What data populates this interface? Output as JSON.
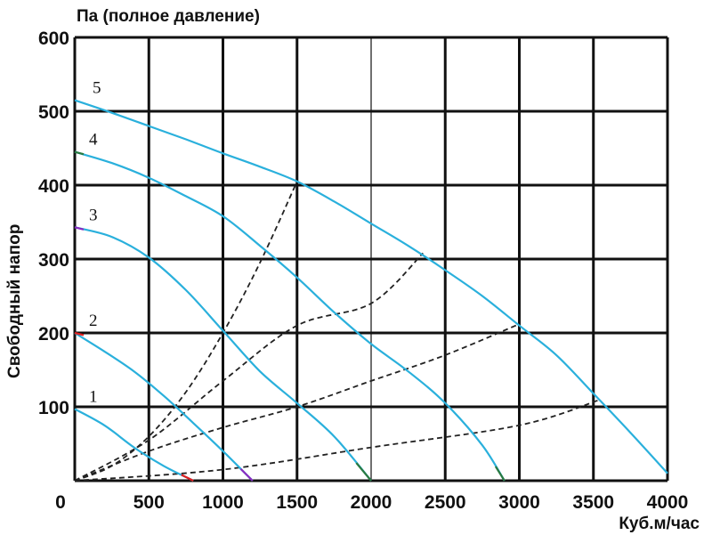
{
  "chart_data": {
    "type": "line",
    "title": "Па (полное давление)",
    "ylabel": "Свободный напор",
    "xlabel": "Куб.м/час",
    "xlim": [
      0,
      4000
    ],
    "ylim": [
      0,
      600
    ],
    "x_ticks": [
      0,
      500,
      1000,
      1500,
      2000,
      2500,
      3000,
      3500,
      4000
    ],
    "y_ticks": [
      100,
      200,
      300,
      400,
      500,
      600
    ],
    "grid": true,
    "colors": {
      "curve": "#2ab0dc",
      "curve_1_end": "#e02020",
      "curve_2_end": "#8a2bc0",
      "curve_3_end": "#2a7a40",
      "system_line": "#222222"
    },
    "series": [
      {
        "name": "1",
        "x": [
          0,
          200,
          400,
          600,
          800
        ],
        "y": [
          97,
          75,
          45,
          20,
          0
        ]
      },
      {
        "name": "2",
        "x": [
          0,
          200,
          400,
          600,
          800,
          1000,
          1200
        ],
        "y": [
          200,
          175,
          148,
          115,
          78,
          40,
          0
        ]
      },
      {
        "name": "3",
        "x": [
          0,
          250,
          500,
          750,
          1000,
          1250,
          1500,
          1750,
          2000
        ],
        "y": [
          343,
          330,
          302,
          258,
          203,
          148,
          105,
          60,
          0
        ]
      },
      {
        "name": "4",
        "x": [
          0,
          250,
          500,
          750,
          1000,
          1250,
          1500,
          1750,
          2000,
          2250,
          2500,
          2750,
          2900
        ],
        "y": [
          445,
          430,
          410,
          385,
          358,
          318,
          275,
          228,
          185,
          148,
          105,
          48,
          0
        ]
      },
      {
        "name": "5",
        "x": [
          0,
          250,
          500,
          750,
          1000,
          1250,
          1500,
          1750,
          2000,
          2250,
          2500,
          2750,
          3000,
          3250,
          3500,
          3750,
          4000
        ],
        "y": [
          515,
          498,
          480,
          462,
          443,
          425,
          405,
          378,
          348,
          318,
          285,
          250,
          210,
          170,
          118,
          65,
          10
        ]
      }
    ],
    "system_lines": [
      {
        "x": [
          0,
          250,
          500,
          750,
          1000,
          1250,
          1500
        ],
        "y": [
          0,
          20,
          60,
          120,
          200,
          295,
          405
        ]
      },
      {
        "x": [
          0,
          500,
          1000,
          1500,
          2000,
          2350
        ],
        "y": [
          0,
          55,
          135,
          210,
          240,
          308
        ]
      },
      {
        "x": [
          0,
          500,
          1000,
          1500,
          2000,
          2500,
          3000
        ],
        "y": [
          0,
          40,
          72,
          100,
          135,
          170,
          212
        ]
      },
      {
        "x": [
          0,
          1000,
          2000,
          3000,
          3550
        ],
        "y": [
          0,
          15,
          45,
          75,
          110
        ]
      }
    ]
  }
}
